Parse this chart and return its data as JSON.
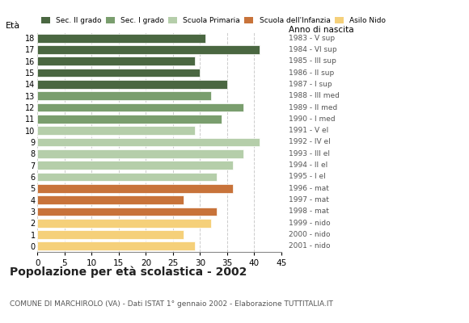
{
  "ages": [
    18,
    17,
    16,
    15,
    14,
    13,
    12,
    11,
    10,
    9,
    8,
    7,
    6,
    5,
    4,
    3,
    2,
    1,
    0
  ],
  "values": [
    31,
    41,
    29,
    30,
    35,
    32,
    38,
    34,
    29,
    41,
    38,
    36,
    33,
    36,
    27,
    33,
    32,
    27,
    29
  ],
  "right_labels": [
    "1983 - V sup",
    "1984 - VI sup",
    "1985 - III sup",
    "1986 - II sup",
    "1987 - I sup",
    "1988 - III med",
    "1989 - II med",
    "1990 - I med",
    "1991 - V el",
    "1992 - IV el",
    "1993 - III el",
    "1994 - II el",
    "1995 - I el",
    "1996 - mat",
    "1997 - mat",
    "1998 - mat",
    "1999 - nido",
    "2000 - nido",
    "2001 - nido"
  ],
  "bar_colors": [
    "#4a6741",
    "#4a6741",
    "#4a6741",
    "#4a6741",
    "#4a6741",
    "#7a9e6e",
    "#7a9e6e",
    "#7a9e6e",
    "#b5ceaa",
    "#b5ceaa",
    "#b5ceaa",
    "#b5ceaa",
    "#b5ceaa",
    "#c8733a",
    "#c8733a",
    "#c8733a",
    "#f5d07a",
    "#f5d07a",
    "#f5d07a"
  ],
  "legend_labels": [
    "Sec. II grado",
    "Sec. I grado",
    "Scuola Primaria",
    "Scuola dell'Infanzia",
    "Asilo Nido"
  ],
  "legend_colors": [
    "#4a6741",
    "#7a9e6e",
    "#b5ceaa",
    "#c8733a",
    "#f5d07a"
  ],
  "title": "Popolazione per età scolastica - 2002",
  "subtitle": "COMUNE DI MARCHIROLO (VA) - Dati ISTAT 1° gennaio 2002 - Elaborazione TUTTITALIA.IT",
  "xlabel_age": "Età",
  "xlabel_birth": "Anno di nascita",
  "xlim": [
    0,
    45
  ],
  "xticks": [
    0,
    5,
    10,
    15,
    20,
    25,
    30,
    35,
    40,
    45
  ],
  "grid_color": "#cccccc",
  "background_color": "#ffffff"
}
